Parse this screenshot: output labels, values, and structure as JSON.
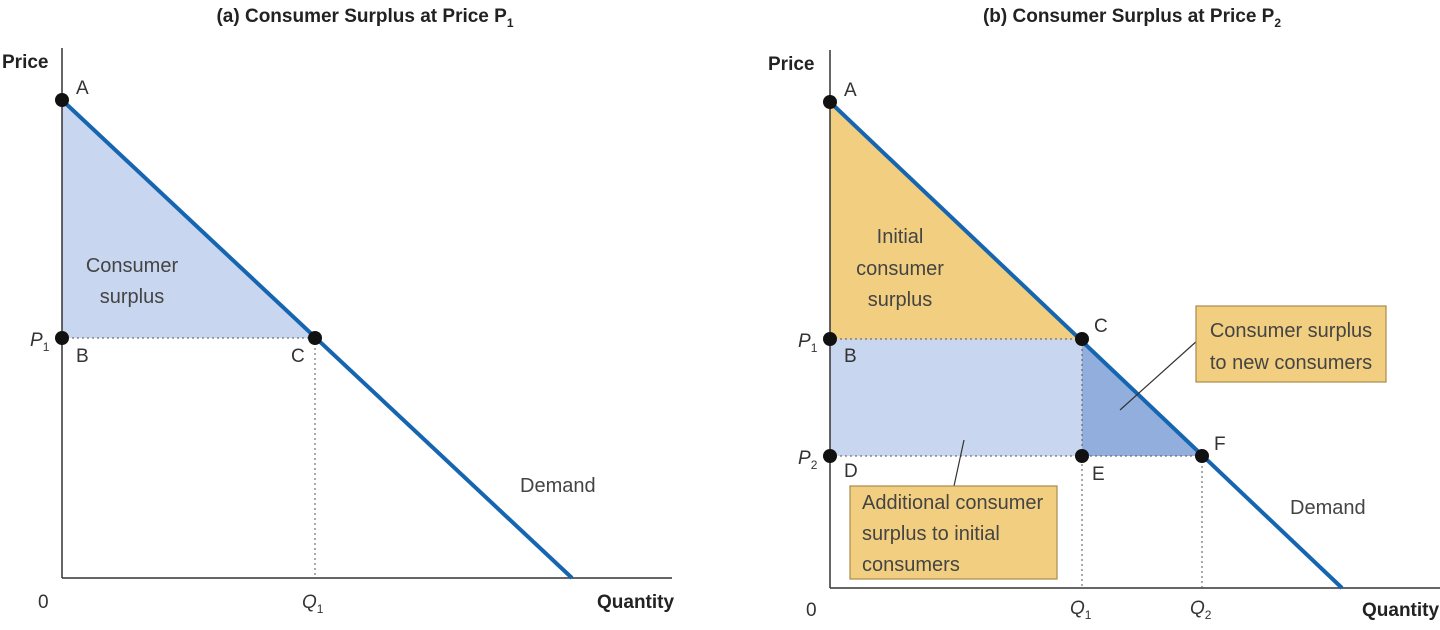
{
  "panel_a": {
    "title": "(a) Consumer Surplus at Price P",
    "title_sub": "1",
    "y_axis_title": "Price",
    "x_axis_title": "Quantity",
    "origin_label": "0",
    "price_tick": {
      "main": "P",
      "sub": "1"
    },
    "quantity_tick": {
      "main": "Q",
      "sub": "1"
    },
    "points": {
      "A": "A",
      "B": "B",
      "C": "C"
    },
    "area_label": [
      "Consumer",
      "surplus"
    ],
    "demand_label": "Demand",
    "colors": {
      "surplus": "#c9d6ef",
      "demand": "#1565b0"
    }
  },
  "panel_b": {
    "title": "(b) Consumer Surplus at Price P",
    "title_sub": "2",
    "y_axis_title": "Price",
    "x_axis_title": "Quantity",
    "origin_label": "0",
    "price_ticks": [
      {
        "main": "P",
        "sub": "1"
      },
      {
        "main": "P",
        "sub": "2"
      }
    ],
    "quantity_ticks": [
      {
        "main": "Q",
        "sub": "1"
      },
      {
        "main": "Q",
        "sub": "2"
      }
    ],
    "points": {
      "A": "A",
      "B": "B",
      "C": "C",
      "D": "D",
      "E": "E",
      "F": "F"
    },
    "initial_label": [
      "Initial",
      "consumer",
      "surplus"
    ],
    "new_consumers_callout": [
      "Consumer surplus",
      "to new consumers"
    ],
    "additional_callout": [
      "Additional consumer",
      "surplus to initial",
      "consumers"
    ],
    "demand_label": "Demand",
    "colors": {
      "initial": "#f2cf80",
      "additional": "#c9d6ef",
      "new": "#91aedc",
      "callout": "#f2cf80",
      "demand": "#1565b0"
    }
  }
}
